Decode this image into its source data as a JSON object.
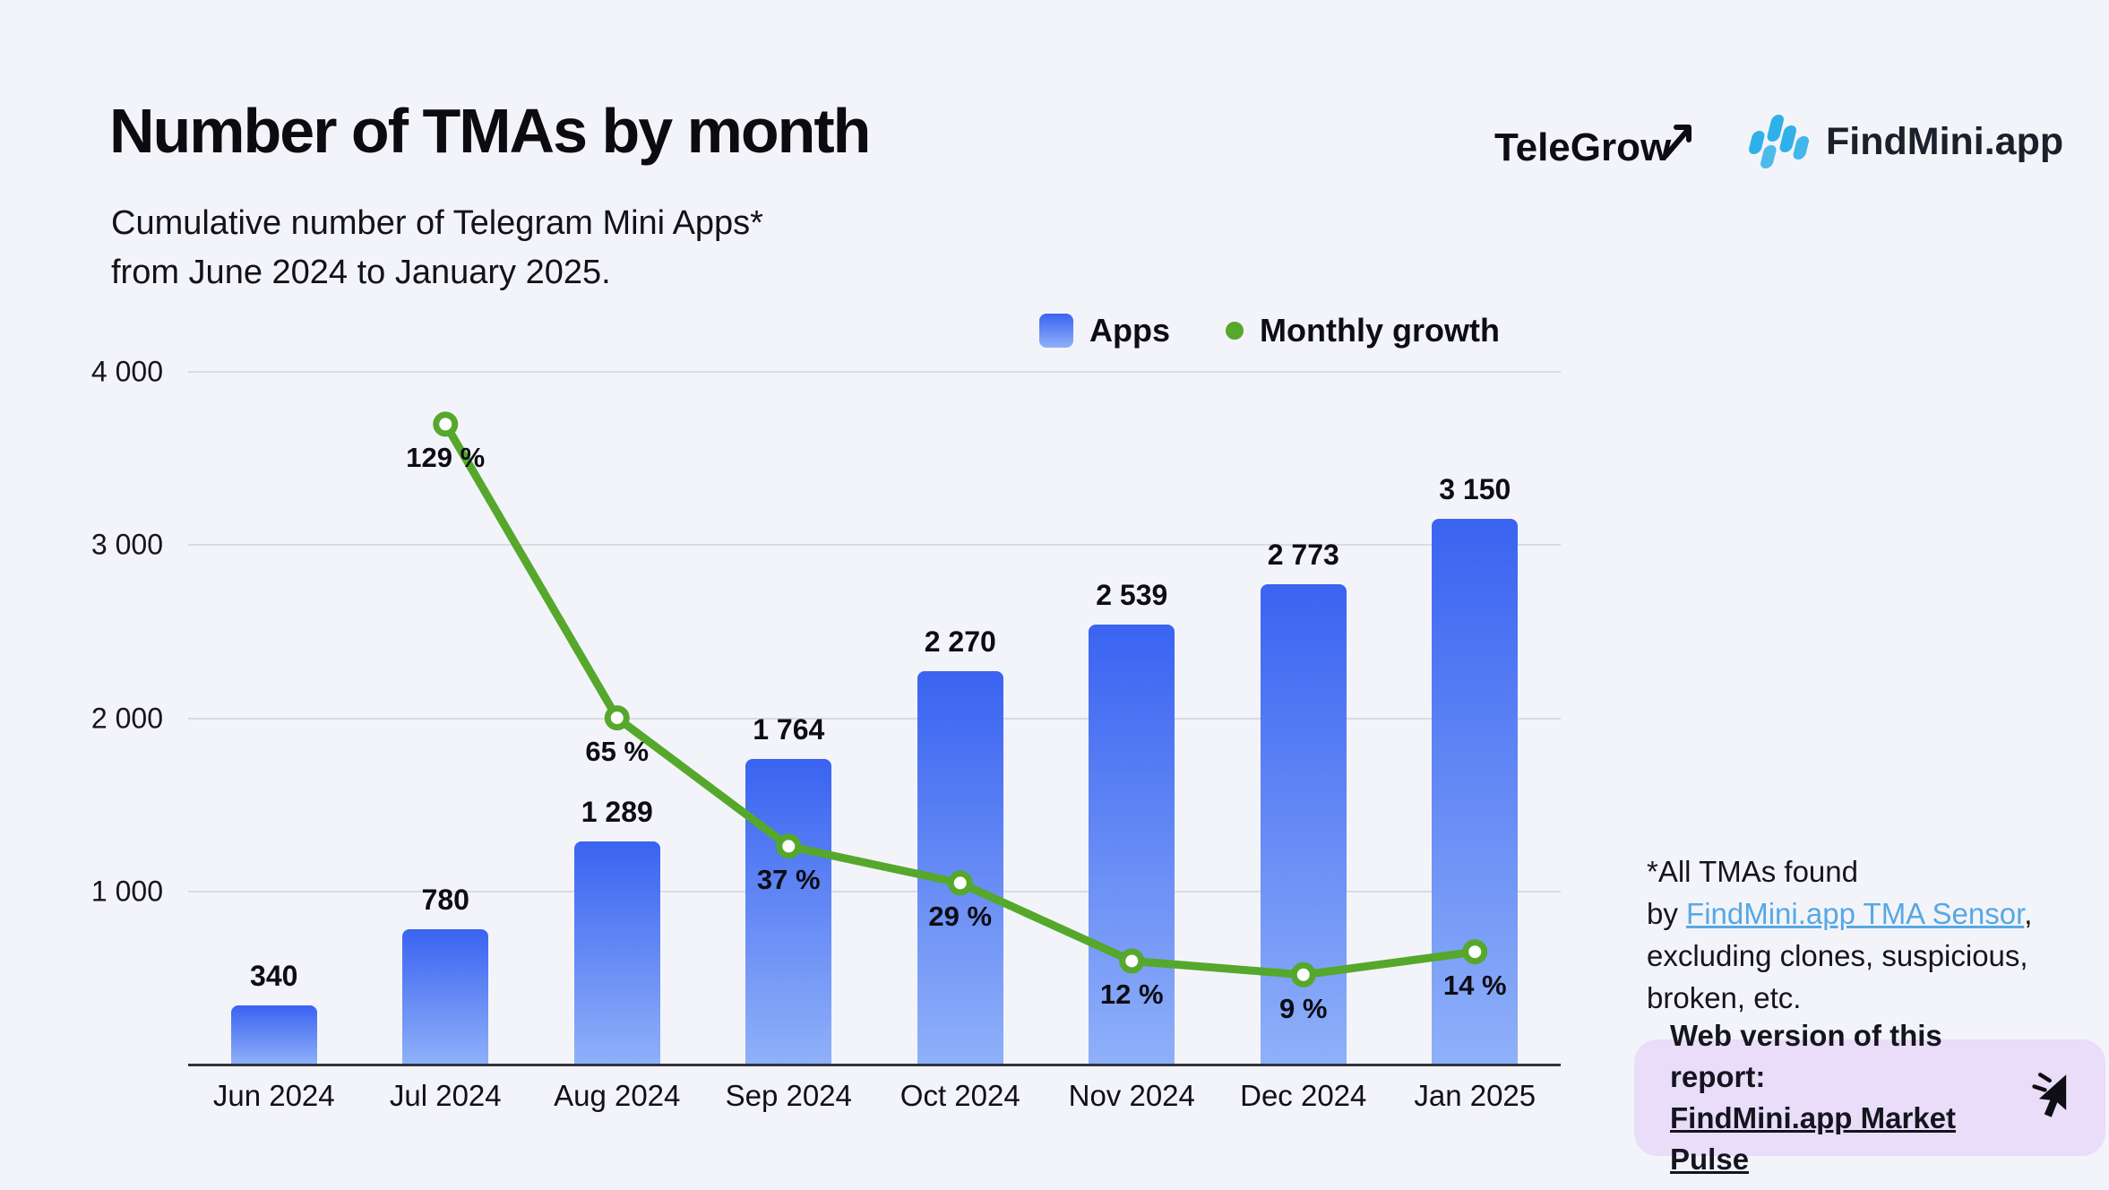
{
  "header": {
    "title": "Number of TMAs by month",
    "subtitle": "Cumulative number of Telegram Mini Apps*\nfrom June 2024 to January 2025."
  },
  "logos": {
    "telegrow": "TeleGrow",
    "findmini": "FindMini.app"
  },
  "chart_data": {
    "type": "bar",
    "title": "Number of TMAs by month",
    "categories": [
      "Jun 2024",
      "Jul 2024",
      "Aug 2024",
      "Sep 2024",
      "Oct 2024",
      "Nov 2024",
      "Dec 2024",
      "Jan 2025"
    ],
    "series": [
      {
        "name": "Apps",
        "type": "bar",
        "values": [
          340,
          780,
          1289,
          1764,
          2270,
          2539,
          2773,
          3150
        ],
        "value_labels": [
          "340",
          "780",
          "1 289",
          "1 764",
          "2 270",
          "2 539",
          "2 773",
          "3 150"
        ],
        "color_top": "#3a63f1",
        "color_bottom": "#8fb0f9"
      },
      {
        "name": "Monthly growth",
        "type": "line",
        "unit": "%",
        "values": [
          null,
          129,
          65,
          37,
          29,
          12,
          9,
          14
        ],
        "point_labels": [
          null,
          "129 %",
          "65 %",
          "37 %",
          "29 %",
          "12 %",
          "9 %",
          "14 %"
        ],
        "color": "#55a82b",
        "marker": "open-circle"
      }
    ],
    "y_axis": {
      "max": 4000,
      "tick_values": [
        1000,
        2000,
        3000,
        4000
      ],
      "tick_labels": [
        "1 000",
        "2 000",
        "3 000",
        "4 000"
      ]
    },
    "grid": "horizontal",
    "legend_position": "top-right"
  },
  "footnote": {
    "line1": "*All TMAs found",
    "by_prefix": "by ",
    "link_text": "FindMini.app TMA Sensor",
    "after_link": ",",
    "line3": "excluding clones, suspicious,",
    "line4": "broken, etc."
  },
  "web_version": {
    "label": "Web version of this report:",
    "link_text": "FindMini.app Market Pulse"
  },
  "colors": {
    "background": "#f3f4f9",
    "bar_blue_top": "#3a63f1",
    "bar_blue_bottom": "#8fb0f9",
    "growth_green": "#55a82b",
    "footnote_link_blue": "#57a8e4",
    "web_box_purple": "#e9ddf9"
  }
}
